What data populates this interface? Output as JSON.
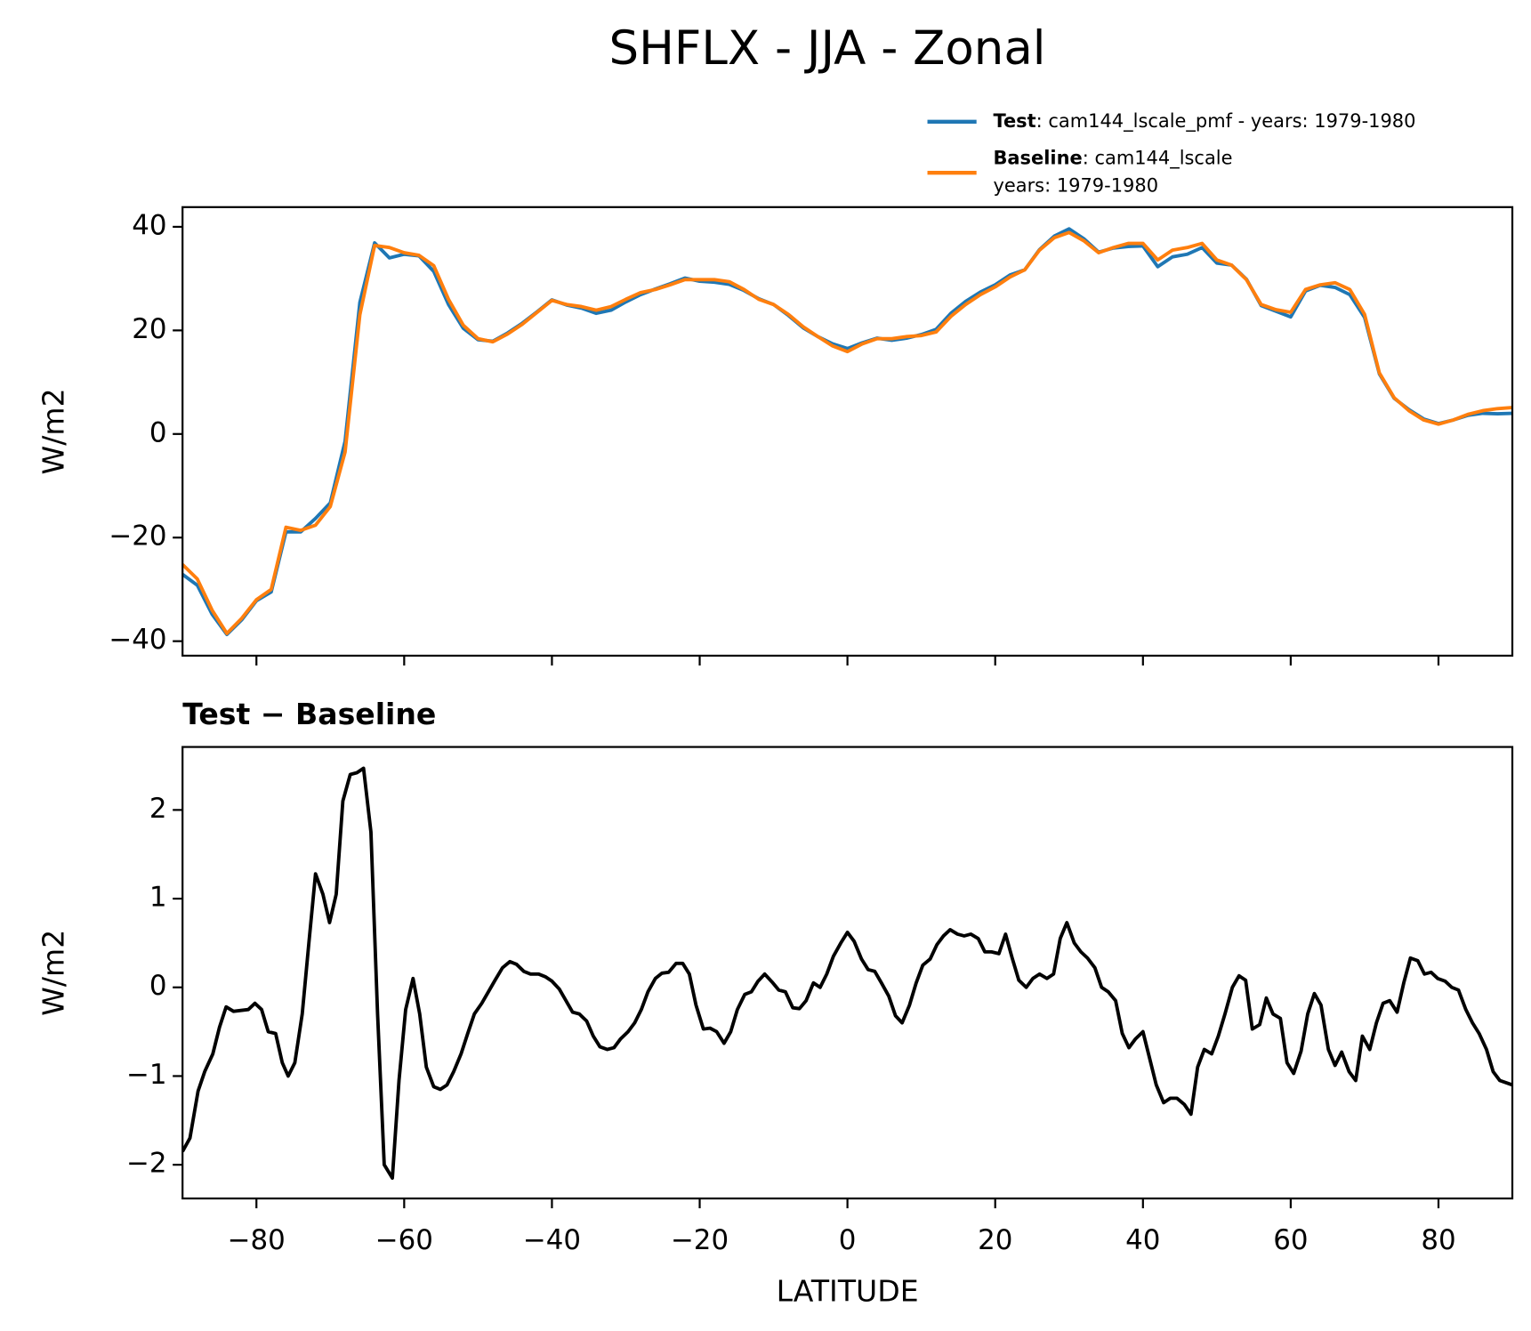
{
  "title": "SHFLX - JJA - Zonal",
  "chart_data": [
    {
      "type": "line",
      "ylabel": "W/m2",
      "legend": "above right",
      "x": [
        -90,
        -88,
        -86,
        -84,
        -82,
        -80,
        -78,
        -76,
        -74,
        -72,
        -70,
        -68,
        -66,
        -64,
        -62,
        -60,
        -58,
        -56,
        -54,
        -52,
        -50,
        -48,
        -46,
        -44,
        -42,
        -40,
        -38,
        -36,
        -34,
        -32,
        -30,
        -28,
        -26,
        -24,
        -22,
        -20,
        -18,
        -16,
        -14,
        -12,
        -10,
        -8,
        -6,
        -4,
        -2,
        0,
        2,
        4,
        6,
        8,
        10,
        12,
        14,
        16,
        18,
        20,
        22,
        24,
        26,
        28,
        30,
        32,
        34,
        36,
        38,
        40,
        42,
        44,
        46,
        48,
        50,
        52,
        54,
        56,
        58,
        60,
        62,
        64,
        66,
        68,
        70,
        72,
        74,
        76,
        78,
        80,
        82,
        84,
        86,
        88,
        90
      ],
      "series": [
        {
          "name": "Test",
          "label": [
            ": cam144_lscale_pmf - years: 1979-1980"
          ],
          "color": "#1f77b4",
          "values": [
            -27.1,
            -29.2,
            -34.8,
            -38.7,
            -35.9,
            -32.2,
            -30.5,
            -18.9,
            -18.9,
            -16.3,
            -13.3,
            -1.4,
            25.4,
            36.9,
            34.0,
            34.7,
            34.4,
            31.4,
            25.0,
            20.4,
            18.2,
            17.9,
            19.5,
            21.4,
            23.6,
            25.9,
            24.9,
            24.3,
            23.3,
            23.9,
            25.5,
            26.9,
            28.0,
            29.0,
            30.1,
            29.5,
            29.3,
            28.9,
            27.7,
            26.1,
            25.0,
            22.9,
            20.5,
            18.8,
            17.4,
            16.5,
            17.6,
            18.5,
            18.1,
            18.5,
            19.2,
            20.2,
            23.3,
            25.6,
            27.4,
            28.8,
            30.7,
            31.7,
            35.6,
            38.2,
            39.6,
            37.7,
            35.1,
            35.9,
            36.2,
            36.3,
            32.3,
            34.2,
            34.7,
            36.0,
            33.0,
            32.6,
            29.9,
            24.8,
            23.7,
            22.6,
            27.6,
            28.7,
            28.3,
            26.9,
            22.5,
            11.6,
            6.9,
            4.7,
            2.9,
            2.0,
            2.7,
            3.6,
            4.0,
            3.9,
            4.0
          ]
        },
        {
          "name": "Baseline",
          "label": [
            ": cam144_lscale",
            "years: 1979-1980"
          ],
          "color": "#ff7f0e",
          "values": [
            -25.2,
            -28,
            -34,
            -38.5,
            -35.6,
            -32,
            -30,
            -18,
            -18.6,
            -17.6,
            -14,
            -3.5,
            23,
            36.4,
            36,
            35,
            34.5,
            32.5,
            26,
            21,
            18.4,
            17.8,
            19.3,
            21.2,
            23.5,
            25.8,
            25,
            24.6,
            23.9,
            24.6,
            26,
            27.3,
            27.9,
            28.8,
            29.8,
            29.8,
            29.8,
            29.4,
            27.9,
            26,
            25,
            23.1,
            20.7,
            18.8,
            17,
            15.9,
            17.4,
            18.4,
            18.4,
            18.8,
            19,
            19.7,
            22.7,
            25,
            26.9,
            28.4,
            30.3,
            31.7,
            35.5,
            37.9,
            38.9,
            37.3,
            35,
            36,
            36.8,
            36.8,
            33.6,
            35.5,
            36,
            36.8,
            33.6,
            32.6,
            29.8,
            25,
            24,
            23.5,
            27.9,
            28.8,
            29.2,
            27.9,
            23.1,
            11.8,
            7,
            4.5,
            2.7,
            1.9,
            2.7,
            3.8,
            4.5,
            4.9,
            5.1
          ]
        }
      ],
      "xlim": [
        -90,
        90
      ],
      "ylim": [
        -42.8,
        43.8
      ],
      "yticks": [
        {
          "value": -40,
          "label": "−40"
        },
        {
          "value": -20,
          "label": "−20"
        },
        0,
        20,
        40
      ]
    },
    {
      "type": "line",
      "title": "Test − Baseline",
      "ylabel": "W/m2",
      "xlabel": "LATITUDE",
      "x": [
        -90,
        -89.0,
        -87.9,
        -87.0,
        -85.9,
        -85.0,
        -84.1,
        -83.1,
        -82.1,
        -81.1,
        -80.2,
        -79.3,
        -78.4,
        -77.4,
        -76.5,
        -75.7,
        -74.8,
        -73.8,
        -72.9,
        -72.0,
        -71.0,
        -70.1,
        -69.2,
        -68.3,
        -67.3,
        -66.4,
        -65.5,
        -64.5,
        -63.6,
        -62.7,
        -61.6,
        -60.7,
        -59.8,
        -58.8,
        -57.9,
        -57.0,
        -56.0,
        -55.1,
        -54.2,
        -53.3,
        -52.3,
        -51.4,
        -50.5,
        -49.5,
        -48.6,
        -47.7,
        -46.7,
        -45.7,
        -44.8,
        -43.8,
        -42.9,
        -41.8,
        -40.9,
        -40.0,
        -39.0,
        -38.1,
        -37.2,
        -36.3,
        -35.3,
        -34.4,
        -33.5,
        -32.5,
        -31.6,
        -30.7,
        -29.7,
        -28.8,
        -27.9,
        -27.0,
        -26.0,
        -25.1,
        -24.2,
        -23.2,
        -22.3,
        -21.4,
        -20.5,
        -19.5,
        -18.6,
        -17.7,
        -16.7,
        -15.8,
        -14.9,
        -13.9,
        -13.0,
        -12.1,
        -11.2,
        -10.2,
        -9.3,
        -8.4,
        -7.4,
        -6.5,
        -5.6,
        -4.6,
        -3.7,
        -2.8,
        -1.9,
        -0.9,
        0,
        0.9,
        1.9,
        2.8,
        3.7,
        4.6,
        5.6,
        6.5,
        7.4,
        8.4,
        9.3,
        10.2,
        11.2,
        12.1,
        13.0,
        13.9,
        14.9,
        15.8,
        16.7,
        17.7,
        18.6,
        19.5,
        20.5,
        21.4,
        22.3,
        23.2,
        24.2,
        25.1,
        26.0,
        27.0,
        27.9,
        28.8,
        29.7,
        30.7,
        31.6,
        32.5,
        33.5,
        34.4,
        35.3,
        36.3,
        37.2,
        38.1,
        39.0,
        40.0,
        40.9,
        41.8,
        42.8,
        43.7,
        44.6,
        45.6,
        46.5,
        47.4,
        48.3,
        49.3,
        50.2,
        51.1,
        52.1,
        53.0,
        53.9,
        54.8,
        55.8,
        56.7,
        57.6,
        58.6,
        59.5,
        60.4,
        61.4,
        62.3,
        63.2,
        64.1,
        65.1,
        66.0,
        66.9,
        67.9,
        68.8,
        69.7,
        70.7,
        71.6,
        72.5,
        73.4,
        74.4,
        75.3,
        76.2,
        77.2,
        78.1,
        79.0,
        79.9,
        80.9,
        81.8,
        82.7,
        83.7,
        84.6,
        85.5,
        86.5,
        87.4,
        88.3,
        90
      ],
      "series": [
        {
          "color": "#000000",
          "values": [
            -1.85,
            -1.7,
            -1.17,
            -0.95,
            -0.75,
            -0.45,
            -0.22,
            -0.27,
            -0.26,
            -0.25,
            -0.18,
            -0.25,
            -0.5,
            -0.52,
            -0.85,
            -1.0,
            -0.85,
            -0.3,
            0.5,
            1.28,
            1.05,
            0.73,
            1.05,
            2.1,
            2.4,
            2.42,
            2.47,
            1.75,
            -0.3,
            -2.0,
            -2.15,
            -1.05,
            -0.25,
            0.1,
            -0.3,
            -0.9,
            -1.12,
            -1.15,
            -1.1,
            -0.95,
            -0.75,
            -0.52,
            -0.3,
            -0.18,
            -0.05,
            0.08,
            0.22,
            0.29,
            0.26,
            0.18,
            0.15,
            0.15,
            0.12,
            0.07,
            -0.02,
            -0.15,
            -0.28,
            -0.3,
            -0.38,
            -0.55,
            -0.67,
            -0.7,
            -0.68,
            -0.58,
            -0.5,
            -0.4,
            -0.25,
            -0.05,
            0.1,
            0.16,
            0.17,
            0.27,
            0.27,
            0.15,
            -0.2,
            -0.47,
            -0.46,
            -0.5,
            -0.63,
            -0.5,
            -0.25,
            -0.08,
            -0.05,
            0.07,
            0.15,
            0.06,
            -0.03,
            -0.05,
            -0.23,
            -0.24,
            -0.15,
            0.05,
            0.0,
            0.15,
            0.35,
            0.5,
            0.62,
            0.52,
            0.32,
            0.2,
            0.18,
            0.05,
            -0.1,
            -0.32,
            -0.4,
            -0.2,
            0.05,
            0.25,
            0.32,
            0.48,
            0.58,
            0.65,
            0.6,
            0.58,
            0.6,
            0.55,
            0.4,
            0.4,
            0.38,
            0.6,
            0.33,
            0.08,
            0.0,
            0.1,
            0.15,
            0.1,
            0.15,
            0.55,
            0.73,
            0.5,
            0.4,
            0.33,
            0.22,
            0.0,
            -0.05,
            -0.15,
            -0.52,
            -0.68,
            -0.58,
            -0.5,
            -0.8,
            -1.1,
            -1.3,
            -1.25,
            -1.25,
            -1.32,
            -1.43,
            -0.9,
            -0.7,
            -0.75,
            -0.55,
            -0.3,
            0.0,
            0.13,
            0.08,
            -0.47,
            -0.42,
            -0.12,
            -0.3,
            -0.35,
            -0.85,
            -0.97,
            -0.72,
            -0.3,
            -0.07,
            -0.2,
            -0.7,
            -0.88,
            -0.73,
            -0.95,
            -1.05,
            -0.55,
            -0.7,
            -0.4,
            -0.18,
            -0.15,
            -0.28,
            0.05,
            0.33,
            0.3,
            0.15,
            0.17,
            0.1,
            0.07,
            0.0,
            -0.03,
            -0.25,
            -0.4,
            -0.52,
            -0.7,
            -0.95,
            -1.05,
            -1.1
          ]
        }
      ],
      "xlim": [
        -90,
        90
      ],
      "ylim": [
        -2.38,
        2.71
      ],
      "xticks": [
        {
          "value": -80,
          "label": "−80"
        },
        {
          "value": -60,
          "label": "−60"
        },
        {
          "value": -40,
          "label": "−40"
        },
        {
          "value": -20,
          "label": "−20"
        },
        0,
        20,
        40,
        60,
        80
      ],
      "yticks": [
        {
          "value": -2,
          "label": "−2"
        },
        {
          "value": -1,
          "label": "−1"
        },
        0,
        1,
        2
      ]
    }
  ]
}
